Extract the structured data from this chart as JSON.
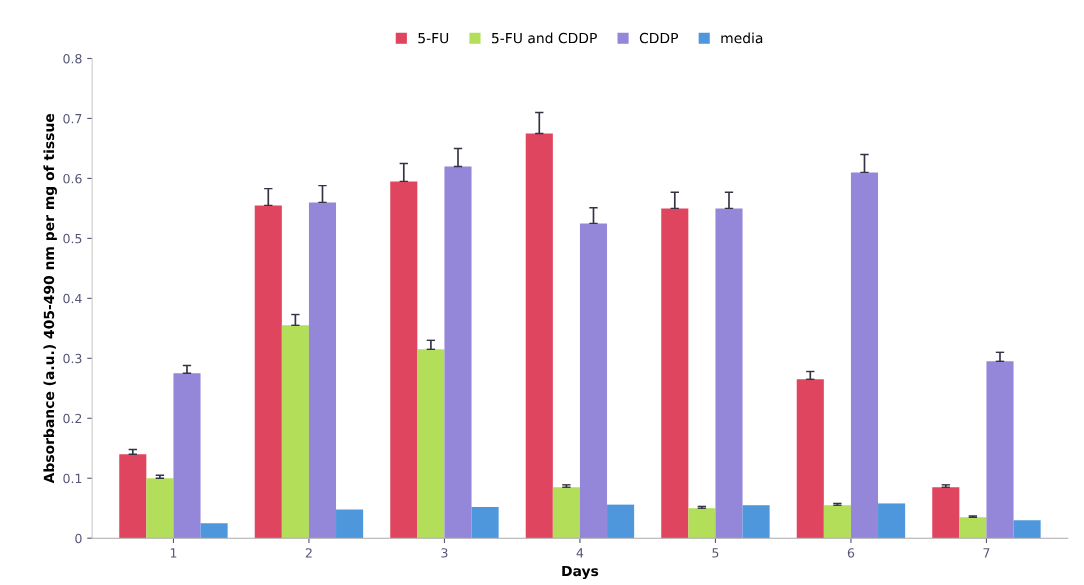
{
  "chart_data": {
    "type": "bar",
    "xlabel": "Days",
    "ylabel": "Absorbance (a.u.) 405-490 nm per mg of tissue",
    "categories": [
      "1",
      "2",
      "3",
      "4",
      "5",
      "6",
      "7"
    ],
    "series": [
      {
        "name": "5-FU",
        "color": "#e0455f",
        "values": [
          0.14,
          0.555,
          0.595,
          0.675,
          0.55,
          0.265,
          0.085
        ],
        "errors": [
          [
            0.14,
            0.148
          ],
          [
            0.555,
            0.583
          ],
          [
            0.595,
            0.625
          ],
          [
            0.675,
            0.71
          ],
          [
            0.55,
            0.577
          ],
          [
            0.265,
            0.278
          ],
          [
            0.085,
            0.089
          ]
        ]
      },
      {
        "name": "5-FU and CDDP",
        "color": "#b2de5a",
        "values": [
          0.1,
          0.355,
          0.315,
          0.085,
          0.05,
          0.055,
          0.035
        ],
        "errors": [
          [
            0.1,
            0.105
          ],
          [
            0.355,
            0.373
          ],
          [
            0.315,
            0.33
          ],
          [
            0.085,
            0.089
          ],
          [
            0.05,
            0.053
          ],
          [
            0.055,
            0.058
          ],
          [
            0.035,
            0.037
          ]
        ]
      },
      {
        "name": "CDDP",
        "color": "#9486d8",
        "values": [
          0.275,
          0.56,
          0.62,
          0.525,
          0.55,
          0.61,
          0.295
        ],
        "errors": [
          [
            0.275,
            0.288
          ],
          [
            0.56,
            0.588
          ],
          [
            0.62,
            0.65
          ],
          [
            0.525,
            0.551
          ],
          [
            0.55,
            0.577
          ],
          [
            0.61,
            0.64
          ],
          [
            0.295,
            0.31
          ]
        ]
      },
      {
        "name": "media",
        "color": "#4e97dc",
        "values": [
          0.025,
          0.048,
          0.052,
          0.056,
          0.055,
          0.058,
          0.03
        ]
      }
    ],
    "ylim": [
      0,
      0.8
    ],
    "yticks": [
      0,
      0.1,
      0.2,
      0.3,
      0.4,
      0.5,
      0.6,
      0.7,
      0.8
    ],
    "grid": false,
    "legend": "top"
  }
}
